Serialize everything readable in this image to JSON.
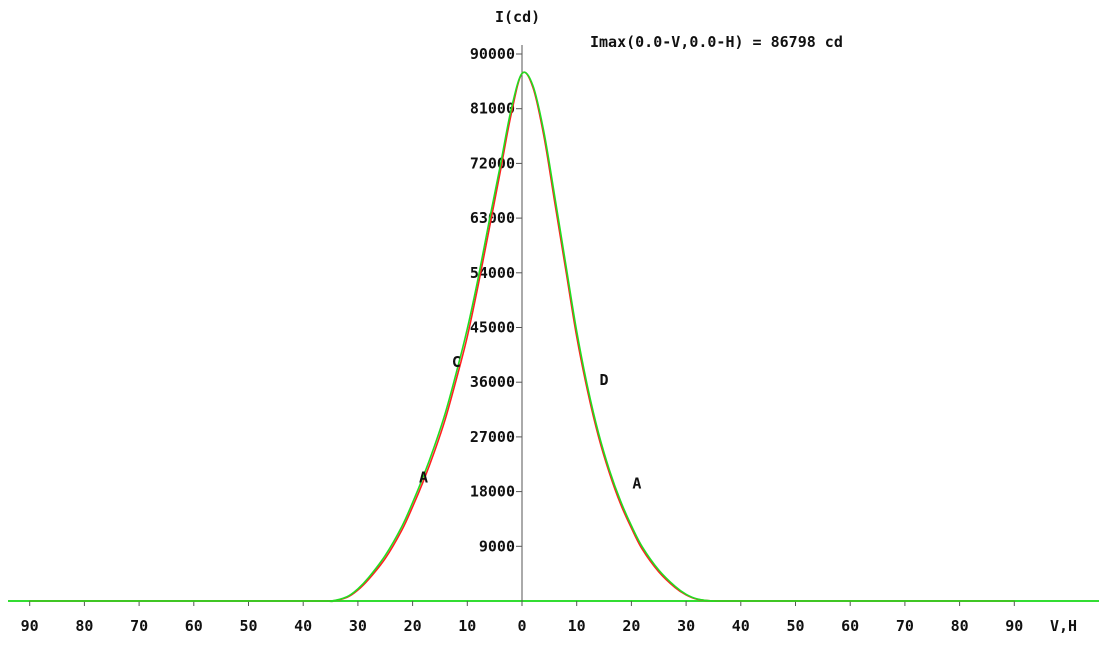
{
  "chart_data": {
    "type": "line",
    "title": "Imax(0.0-V,0.0-H) = 86798 cd",
    "ylabel": "I(cd)",
    "xlabel": "V,H",
    "ylim": [
      0,
      90000
    ],
    "xlim": [
      -90,
      90
    ],
    "y_ticks": [
      9000,
      18000,
      27000,
      36000,
      45000,
      54000,
      63000,
      72000,
      81000,
      90000
    ],
    "y_tick_labels": [
      "9000",
      "18000",
      "27000",
      "36000",
      "45000",
      "54000",
      "63000",
      "72000",
      "81000",
      "90000"
    ],
    "x_ticks": [
      -90,
      -80,
      -70,
      -60,
      -50,
      -40,
      -30,
      -20,
      -10,
      0,
      10,
      20,
      30,
      40,
      50,
      60,
      70,
      80,
      90
    ],
    "x_tick_labels": [
      "90",
      "80",
      "70",
      "60",
      "50",
      "40",
      "30",
      "20",
      "10",
      "0",
      "10",
      "20",
      "30",
      "40",
      "50",
      "60",
      "70",
      "80",
      "90"
    ],
    "series": [
      {
        "color": "#ff2020",
        "x": [
          -90,
          -40,
          -35,
          -32,
          -30,
          -28,
          -25,
          -22,
          -20,
          -18,
          -16,
          -14,
          -12,
          -10,
          -8,
          -6,
          -4,
          -2,
          0,
          2,
          4,
          6,
          8,
          10,
          12,
          14,
          16,
          18,
          20,
          22,
          25,
          28,
          30,
          32,
          35,
          40,
          90
        ],
        "y": [
          0,
          0,
          0,
          600,
          1800,
          3600,
          7000,
          11600,
          15500,
          19800,
          24600,
          30000,
          36500,
          43500,
          52000,
          61200,
          70500,
          80000,
          86798,
          84500,
          76500,
          65500,
          54500,
          43500,
          34500,
          27000,
          21000,
          16000,
          12000,
          8500,
          4800,
          2200,
          1000,
          300,
          0,
          0,
          0
        ]
      },
      {
        "color": "#22dd22",
        "x": [
          -90,
          -40,
          -35,
          -32,
          -30,
          -28,
          -25,
          -22,
          -20,
          -18,
          -16,
          -14,
          -12,
          -10,
          -8,
          -6,
          -4,
          -2,
          0,
          2,
          4,
          6,
          8,
          10,
          12,
          14,
          16,
          18,
          20,
          22,
          25,
          28,
          30,
          32,
          35,
          40,
          90
        ],
        "y": [
          0,
          0,
          0,
          700,
          2000,
          3900,
          7500,
          12200,
          16200,
          20600,
          25500,
          31000,
          37600,
          44800,
          53200,
          62500,
          71500,
          80800,
          86798,
          84800,
          77200,
          66500,
          55400,
          44400,
          35200,
          27600,
          21500,
          16500,
          12400,
          8900,
          5100,
          2400,
          1100,
          350,
          0,
          0,
          0
        ]
      }
    ],
    "curve_labels": [
      {
        "text": "C",
        "x": -12,
        "y": 38500
      },
      {
        "text": "A",
        "x": -18,
        "y": 19500
      },
      {
        "text": "D",
        "x": 15,
        "y": 35500
      },
      {
        "text": "A",
        "x": 21,
        "y": 18500
      }
    ],
    "grid": false,
    "legend": "none"
  }
}
